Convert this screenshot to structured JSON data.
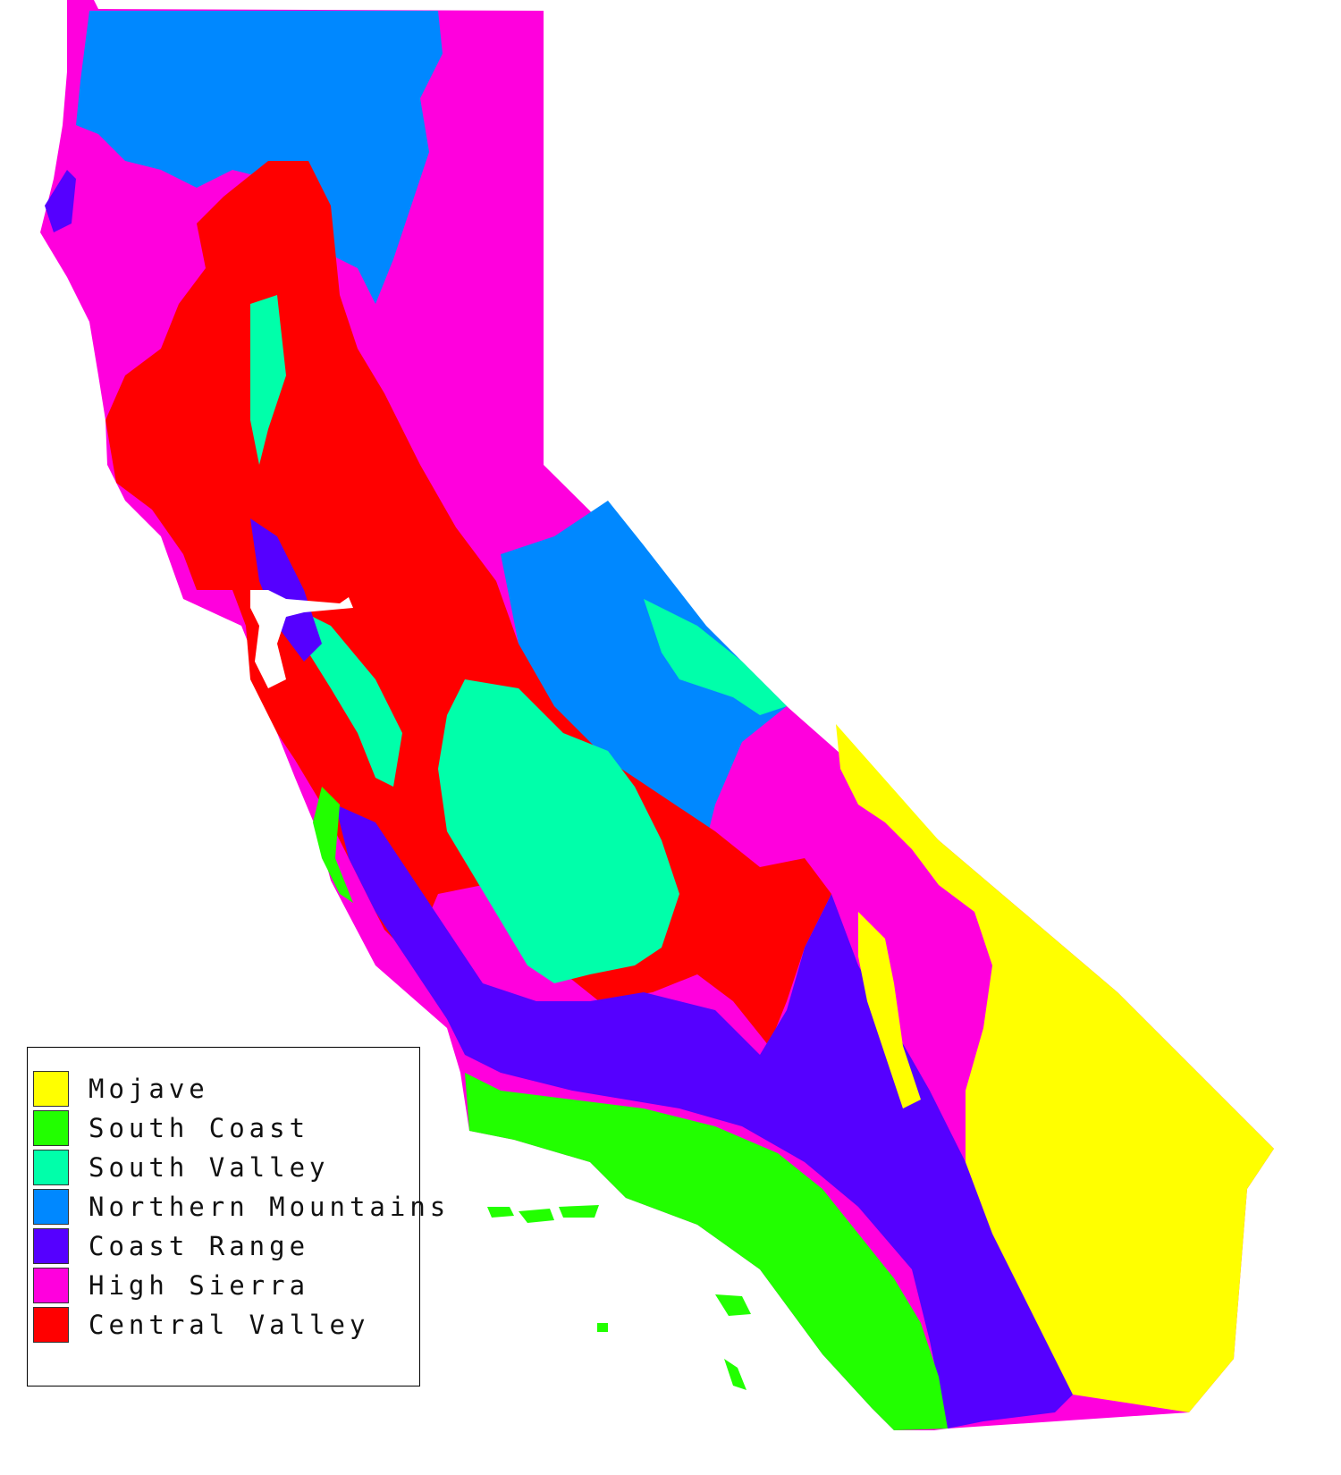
{
  "map": {
    "legend": [
      {
        "label": "Mojave",
        "color": "#ffff00"
      },
      {
        "label": "South Coast",
        "color": "#22ff00"
      },
      {
        "label": "South Valley",
        "color": "#00ffaa"
      },
      {
        "label": "Northern Mountains",
        "color": "#0088ff"
      },
      {
        "label": "Coast Range",
        "color": "#5500ff"
      },
      {
        "label": "High Sierra",
        "color": "#ff00dd"
      },
      {
        "label": "Central Valley",
        "color": "#ff0000"
      }
    ]
  }
}
